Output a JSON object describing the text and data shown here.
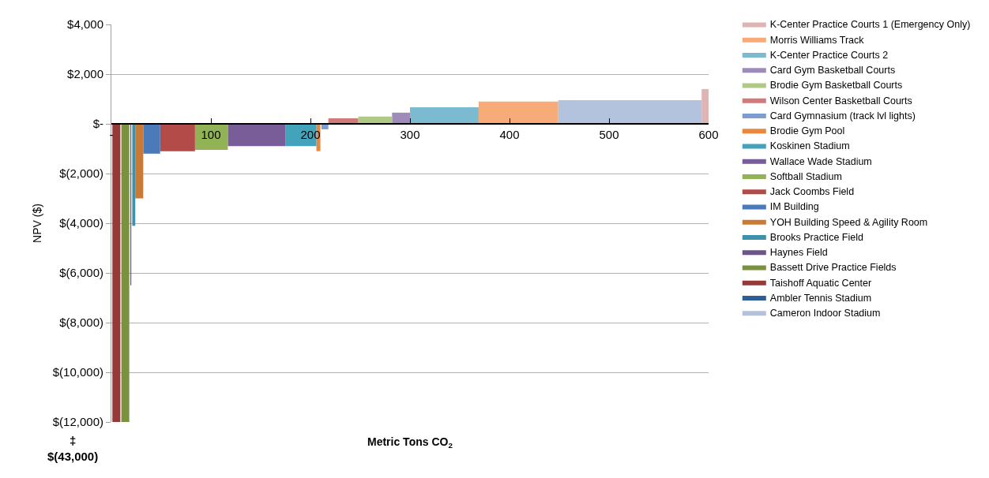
{
  "chart_data": {
    "type": "area",
    "xlabel": "Metric Tons CO$_{2}$",
    "ylabel": "NPV ($)",
    "xlim": [
      0,
      600
    ],
    "xticks": [
      {
        "value": 0,
        "label": "-"
      },
      100,
      200,
      300,
      400,
      500,
      600
    ],
    "ylim": [
      -12000,
      4000
    ],
    "yticks": [
      {
        "value": 4000,
        "label": "$4,000"
      },
      {
        "value": 2000,
        "label": "$2,000"
      },
      {
        "value": 0,
        "label": "$-"
      },
      {
        "value": -2000,
        "label": "$(2,000)"
      },
      {
        "value": -4000,
        "label": "$(4,000)"
      },
      {
        "value": -6000,
        "label": "$(6,000)"
      },
      {
        "value": -8000,
        "label": "$(8,000)"
      },
      {
        "value": -10000,
        "label": "$(10,000)"
      },
      {
        "value": -12000,
        "label": "$(12,000)"
      }
    ],
    "grid": "y",
    "legend": "right",
    "annotations": [
      "‡\n$(43,000)"
    ],
    "series": [
      {
        "name": "K-Center Practice Courts 1 (Emergency Only)",
        "color": "#dfb5b4",
        "x": [
          593,
          600
        ],
        "values": [
          1400,
          1400
        ]
      },
      {
        "name": "Morris Williams Track",
        "color": "#f7ab79",
        "x": [
          369,
          449
        ],
        "values": [
          900,
          900
        ]
      },
      {
        "name": "K-Center Practice Courts 2",
        "color": "#7cbad0",
        "x": [
          300,
          369
        ],
        "values": [
          670,
          670
        ]
      },
      {
        "name": "Card Gym Basketball Courts",
        "color": "#9e8bba",
        "x": [
          282,
          300
        ],
        "values": [
          450,
          450
        ]
      },
      {
        "name": "Brodie Gym Basketball Courts",
        "color": "#b0c986",
        "x": [
          248,
          282
        ],
        "values": [
          290,
          290
        ]
      },
      {
        "name": "Wilson Center Basketball Courts",
        "color": "#d07b79",
        "x": [
          218,
          248
        ],
        "values": [
          220,
          220
        ]
      },
      {
        "name": "Card Gymnasium (track lvl lights)",
        "color": "#7d9ccf",
        "x": [
          211,
          218
        ],
        "values": [
          -220,
          -220
        ]
      },
      {
        "name": "Brodie Gym Pool",
        "color": "#e9883c",
        "x": [
          206,
          210
        ],
        "values": [
          -1100,
          -1100
        ]
      },
      {
        "name": "Koskinen Stadium",
        "color": "#43a3bb",
        "x": [
          175,
          206
        ],
        "values": [
          -900,
          -900
        ]
      },
      {
        "name": "Wallace Wade Stadium",
        "color": "#795d99",
        "x": [
          117,
          175
        ],
        "values": [
          -900,
          -900
        ]
      },
      {
        "name": "Softball Stadium",
        "color": "#91b356",
        "x": [
          84,
          117
        ],
        "values": [
          -1050,
          -1050
        ]
      },
      {
        "name": "Jack Coombs Field",
        "color": "#b34b48",
        "x": [
          49,
          84
        ],
        "values": [
          -1100,
          -1100
        ]
      },
      {
        "name": "IM Building",
        "color": "#4a7ab8",
        "x": [
          32,
          49
        ],
        "values": [
          -1200,
          -1200
        ]
      },
      {
        "name": "YOH Building Speed & Agility Room",
        "color": "#c97a36",
        "x": [
          24,
          32
        ],
        "values": [
          -3000,
          -3000
        ]
      },
      {
        "name": "Brooks Practice Field",
        "color": "#3d91a8",
        "x": [
          21,
          24
        ],
        "values": [
          -4100,
          -4100
        ]
      },
      {
        "name": "Haynes Field",
        "color": "#6d5589",
        "x": [
          19,
          20
        ],
        "values": [
          -6500,
          -6500
        ]
      },
      {
        "name": "Bassett Drive Practice Fields",
        "color": "#7a9140",
        "x": [
          10,
          18
        ],
        "values": [
          -12000,
          -12000
        ]
      },
      {
        "name": "Taishoff Aquatic Center",
        "color": "#953a38",
        "x": [
          1,
          9
        ],
        "values": [
          -12000,
          -12000
        ]
      },
      {
        "name": "Ambler Tennis Stadium",
        "color": "#2f5d96",
        "x": [
          null
        ],
        "values": [
          null
        ]
      },
      {
        "name": "Cameron Indoor Stadium",
        "color": "#b4c3dd",
        "x": [
          449,
          593
        ],
        "values": [
          950,
          950
        ]
      }
    ]
  }
}
